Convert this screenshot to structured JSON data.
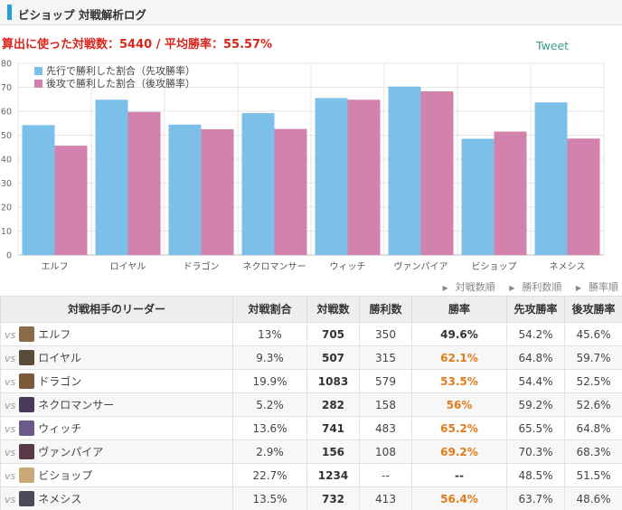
{
  "page_title": "ビショップ 対戦解析ログ",
  "summary": "算出に使った対戦数：5440 / 平均勝率：55.57%",
  "tweet_label": "Tweet",
  "sort_links": [
    "対戦数順",
    "勝利数順",
    "勝率順"
  ],
  "table": {
    "headers": [
      "対戦相手のリーダー",
      "対戦割合",
      "対戦数",
      "勝利数",
      "勝率",
      "先攻勝率",
      "後攻勝率"
    ],
    "vs_label": "vs",
    "rows": [
      {
        "leader": "エルフ",
        "share": "13%",
        "games": "705",
        "wins": "350",
        "winrate": "49.6%",
        "first": "54.2%",
        "second": "45.6%",
        "highlight": false
      },
      {
        "leader": "ロイヤル",
        "share": "9.3%",
        "games": "507",
        "wins": "315",
        "winrate": "62.1%",
        "first": "64.8%",
        "second": "59.7%",
        "highlight": true
      },
      {
        "leader": "ドラゴン",
        "share": "19.9%",
        "games": "1083",
        "wins": "579",
        "winrate": "53.5%",
        "first": "54.4%",
        "second": "52.5%",
        "highlight": true
      },
      {
        "leader": "ネクロマンサー",
        "share": "5.2%",
        "games": "282",
        "wins": "158",
        "winrate": "56%",
        "first": "59.2%",
        "second": "52.6%",
        "highlight": true
      },
      {
        "leader": "ウィッチ",
        "share": "13.6%",
        "games": "741",
        "wins": "483",
        "winrate": "65.2%",
        "first": "65.5%",
        "second": "64.8%",
        "highlight": true
      },
      {
        "leader": "ヴァンパイア",
        "share": "2.9%",
        "games": "156",
        "wins": "108",
        "winrate": "69.2%",
        "first": "70.3%",
        "second": "68.3%",
        "highlight": true
      },
      {
        "leader": "ビショップ",
        "share": "22.7%",
        "games": "1234",
        "wins": "--",
        "winrate": "--",
        "first": "48.5%",
        "second": "51.5%",
        "highlight": false
      },
      {
        "leader": "ネメシス",
        "share": "13.5%",
        "games": "732",
        "wins": "413",
        "winrate": "56.4%",
        "first": "63.7%",
        "second": "48.6%",
        "highlight": true
      }
    ]
  },
  "colors": {
    "first_series": "#7cbfe9",
    "second_series": "#d382ad",
    "highlight_text": "#e07b1c",
    "summary_text": "#d9261c",
    "avatars": [
      "#8a6a4a",
      "#5a4a3a",
      "#7a5a3a",
      "#4a3a5a",
      "#6a5a8a",
      "#5a3a4a",
      "#c9a87a",
      "#4a4a5a"
    ]
  },
  "chart_data": {
    "type": "bar",
    "categories": [
      "エルフ",
      "ロイヤル",
      "ドラゴン",
      "ネクロマンサー",
      "ウィッチ",
      "ヴァンパイア",
      "ビショップ",
      "ネメシス"
    ],
    "series": [
      {
        "name": "先行で勝利した割合（先攻勝率）",
        "values": [
          54.2,
          64.8,
          54.4,
          59.2,
          65.5,
          70.3,
          48.5,
          63.7
        ]
      },
      {
        "name": "後攻で勝利した割合（後攻勝率）",
        "values": [
          45.6,
          59.7,
          52.5,
          52.6,
          64.8,
          68.3,
          51.5,
          48.6
        ]
      }
    ],
    "ylim": [
      0,
      80
    ],
    "yticks": [
      0,
      10,
      20,
      30,
      40,
      50,
      60,
      70,
      80
    ],
    "grid": true,
    "legend_position": "top-left"
  }
}
